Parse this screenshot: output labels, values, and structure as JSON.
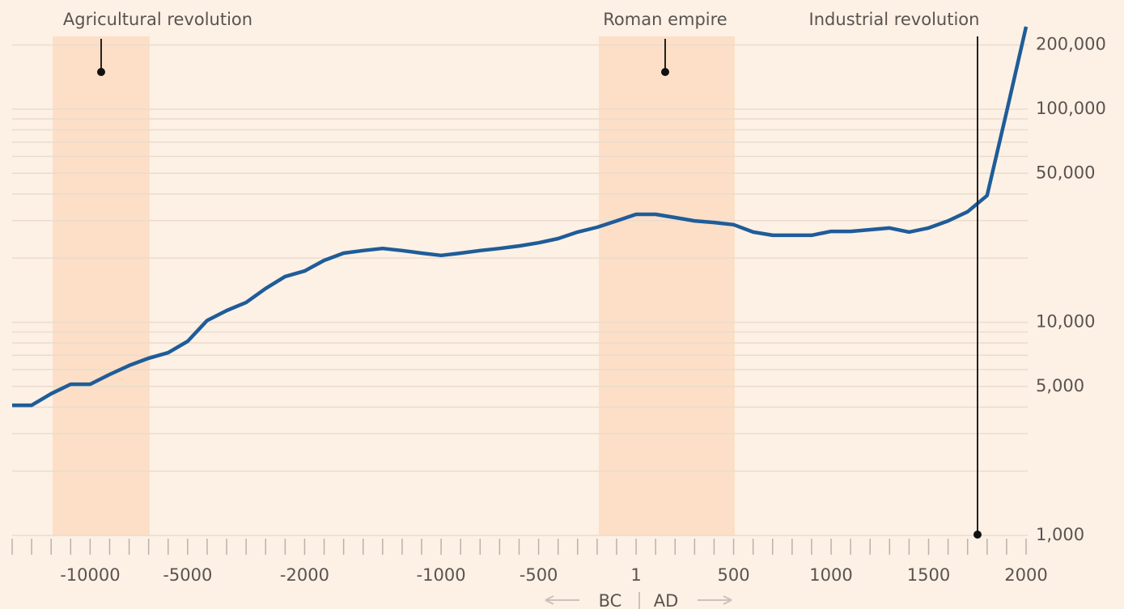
{
  "chart_data": {
    "type": "line",
    "log_y": true,
    "categories": [
      null,
      null,
      null,
      null,
      "-10000",
      null,
      null,
      null,
      null,
      "-5000",
      null,
      null,
      null,
      null,
      null,
      "-2000",
      null,
      null,
      null,
      null,
      null,
      null,
      "-1000",
      null,
      null,
      null,
      null,
      "-500",
      null,
      null,
      null,
      null,
      "1",
      null,
      null,
      null,
      null,
      "500",
      null,
      null,
      null,
      null,
      "1000",
      null,
      null,
      null,
      null,
      "1500",
      null,
      null,
      null,
      null,
      "2000"
    ],
    "series": [
      {
        "color": "#1f5c99",
        "values": [
          4080,
          4080,
          4620,
          5120,
          5120,
          5690,
          6270,
          6780,
          7200,
          8140,
          10200,
          11350,
          12400,
          14400,
          16400,
          17400,
          19500,
          21100,
          21700,
          22200,
          21700,
          21100,
          20600,
          21100,
          21700,
          22200,
          22800,
          23600,
          24700,
          26500,
          27900,
          29900,
          32100,
          32100,
          31000,
          29900,
          29400,
          28700,
          26500,
          25600,
          25600,
          25600,
          26700,
          26700,
          27200,
          27700,
          26500,
          27700,
          29900,
          33000,
          39300,
          97000,
          243700
        ]
      }
    ],
    "ylim": [
      1000,
      243700
    ],
    "yticks": [
      {
        "value": 1000,
        "label": "1,000"
      },
      {
        "value": 5000,
        "label": "5,000"
      },
      {
        "value": 10000,
        "label": "10,000"
      },
      {
        "value": 50000,
        "label": "50,000"
      },
      {
        "value": 100000,
        "label": "100,000"
      },
      {
        "value": 200000,
        "label": "200,000"
      }
    ],
    "minor_yticks": [
      2000,
      3000,
      4000,
      6000,
      7000,
      8000,
      9000,
      20000,
      30000,
      40000,
      60000,
      70000,
      80000,
      90000
    ],
    "annotations": [
      "Agricultural revolution",
      "Roman empire",
      "Industrial revolution"
    ],
    "era_labels": [
      "BC",
      "AD"
    ]
  }
}
